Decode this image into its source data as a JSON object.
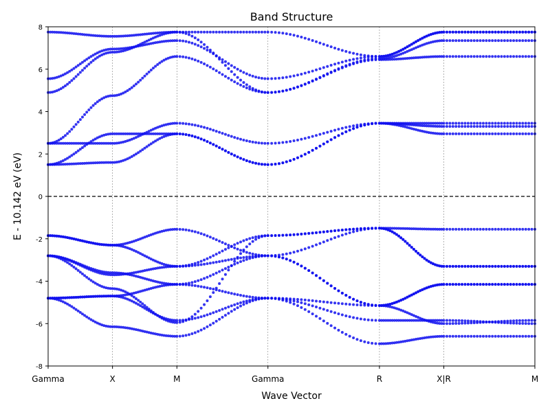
{
  "chart_data": {
    "type": "scatter",
    "title": "Band Structure",
    "xlabel": "Wave Vector",
    "ylabel": "E - 10.142 eV (eV)",
    "ylim": [
      -8,
      8
    ],
    "yticks": [
      -8,
      -6,
      -4,
      -2,
      0,
      2,
      4,
      6,
      8
    ],
    "fermi_level": 0,
    "x_path_labels": [
      "Gamma",
      "X",
      "M",
      "Gamma",
      "R",
      "X|R",
      "M"
    ],
    "x_path_positions": [
      0,
      0.5,
      1.0,
      1.707,
      2.573,
      3.073,
      3.78
    ],
    "grid": "vertical dashed lines at high-symmetry points",
    "marker_color": "#1010ee",
    "series": [
      {
        "x": [
          0,
          0.5,
          1.0,
          1.707,
          2.573,
          3.073,
          3.78
        ],
        "y": [
          -4.8,
          -4.7,
          -4.15,
          -4.8,
          -5.85,
          -5.85,
          -6.0
        ]
      },
      {
        "x": [
          0,
          0.5,
          1.0,
          1.707,
          2.573,
          3.073,
          3.78
        ],
        "y": [
          -4.8,
          -6.15,
          -6.6,
          -4.8,
          -6.95,
          -6.6,
          -6.6
        ]
      },
      {
        "x": [
          0,
          0.5,
          1.0,
          1.707,
          2.573,
          3.073,
          3.78
        ],
        "y": [
          -4.8,
          -4.7,
          -5.85,
          -4.8,
          -5.15,
          -6.0,
          -5.85
        ]
      },
      {
        "x": [
          0,
          0.5,
          1.0,
          1.707,
          2.573,
          3.073,
          3.78
        ],
        "y": [
          -2.8,
          -3.6,
          -4.15,
          -2.8,
          -5.15,
          -4.15,
          -4.15
        ]
      },
      {
        "x": [
          0,
          0.5,
          1.0,
          1.707,
          2.573,
          3.073,
          3.78
        ],
        "y": [
          -2.8,
          -3.7,
          -3.3,
          -2.8,
          -5.15,
          -4.15,
          -4.15
        ]
      },
      {
        "x": [
          0,
          0.5,
          1.0,
          1.707,
          2.573,
          3.073,
          3.78
        ],
        "y": [
          -2.8,
          -4.35,
          -5.95,
          -1.85,
          -1.5,
          -3.3,
          -3.3
        ]
      },
      {
        "x": [
          0,
          0.5,
          1.0,
          1.707,
          2.573,
          3.073,
          3.78
        ],
        "y": [
          -1.85,
          -2.3,
          -3.3,
          -1.85,
          -1.5,
          -3.3,
          -3.3
        ]
      },
      {
        "x": [
          0,
          0.5,
          1.0,
          1.707,
          2.573,
          3.073,
          3.78
        ],
        "y": [
          -1.85,
          -2.3,
          -1.55,
          -2.8,
          -1.5,
          -1.55,
          -1.55
        ]
      },
      {
        "x": [
          0,
          0.5,
          1.0,
          1.707,
          2.573,
          3.073,
          3.78
        ],
        "y": [
          1.5,
          1.6,
          2.95,
          1.5,
          3.45,
          2.95,
          2.95
        ]
      },
      {
        "x": [
          0,
          0.5,
          1.0,
          1.707,
          2.573,
          3.073,
          3.78
        ],
        "y": [
          1.5,
          2.95,
          2.95,
          1.5,
          3.45,
          3.3,
          3.3
        ]
      },
      {
        "x": [
          0,
          0.5,
          1.0,
          1.707,
          2.573,
          3.073,
          3.78
        ],
        "y": [
          2.5,
          2.5,
          3.45,
          2.5,
          3.45,
          3.45,
          3.45
        ]
      },
      {
        "x": [
          0,
          0.5,
          1.0,
          1.707,
          2.573,
          3.073,
          3.78
        ],
        "y": [
          2.5,
          4.75,
          6.6,
          4.9,
          6.45,
          6.6,
          6.6
        ]
      },
      {
        "x": [
          0,
          0.5,
          1.0,
          1.707,
          2.573,
          3.073,
          3.78
        ],
        "y": [
          4.9,
          6.8,
          7.75,
          4.9,
          6.5,
          7.35,
          7.35
        ]
      },
      {
        "x": [
          0,
          0.5,
          1.0,
          1.707,
          2.573,
          3.073,
          3.78
        ],
        "y": [
          5.55,
          6.95,
          7.35,
          5.55,
          6.6,
          7.75,
          7.75
        ]
      },
      {
        "x": [
          0,
          0.5,
          1.0,
          1.707,
          2.573,
          3.073,
          3.78
        ],
        "y": [
          7.75,
          7.55,
          7.75,
          7.75,
          6.6,
          7.75,
          7.75
        ]
      }
    ]
  }
}
